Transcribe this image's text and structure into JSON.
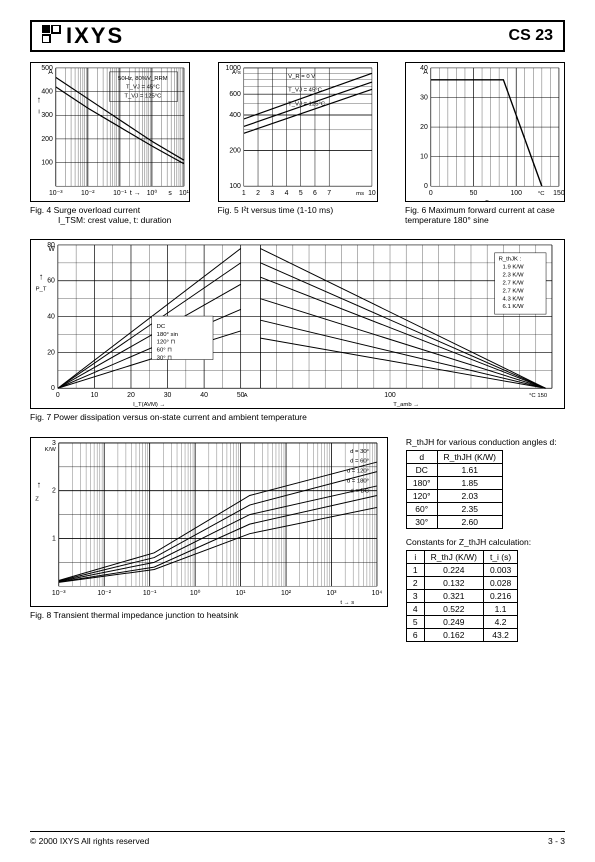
{
  "header": {
    "logo_text": "IXYS",
    "part_number": "CS 23"
  },
  "fig4": {
    "type": "line-log-x",
    "title": "Fig. 4  Surge overload current",
    "subtitle": "I_TSM: crest value, t: duration",
    "ylabel_top": "A",
    "ylabel": "I_TSM",
    "xlabel": "t",
    "xunit": "s",
    "annotations": [
      "50Hz, 80%V_RRM",
      "T_VJ = 45°C",
      "T_VJ = 125°C"
    ],
    "ylim": [
      0,
      500
    ],
    "ytick_step": 100,
    "xticks": [
      "10⁻³",
      "10⁻²",
      "10⁻¹",
      "10⁰",
      "10¹"
    ],
    "series": [
      {
        "label": "45C",
        "points": [
          [
            0,
            460
          ],
          [
            0.25,
            370
          ],
          [
            0.5,
            280
          ],
          [
            0.75,
            190
          ],
          [
            1,
            110
          ]
        ]
      },
      {
        "label": "125C",
        "points": [
          [
            0,
            420
          ],
          [
            0.25,
            330
          ],
          [
            0.5,
            250
          ],
          [
            0.75,
            170
          ],
          [
            1,
            95
          ]
        ]
      }
    ],
    "grid_color": "#000000",
    "background": "#ffffff"
  },
  "fig5": {
    "type": "line-log-y",
    "title": "Fig. 5  I²t versus time (1-10 ms)",
    "ylabel_top": "A²s",
    "ylabel": "I²t",
    "xlabel": "t",
    "xunit": "ms",
    "annotations": [
      "V_R = 0 V",
      "T_VJ = 45°C",
      "T_VJ = 125°C"
    ],
    "ylim": [
      100,
      1000
    ],
    "yticks": [
      100,
      200,
      400,
      600,
      1000
    ],
    "xticks": [
      1,
      2,
      3,
      4,
      5,
      6,
      7,
      10
    ],
    "series": [
      {
        "points": [
          [
            1,
            320
          ],
          [
            10,
            760
          ]
        ]
      },
      {
        "points": [
          [
            1,
            280
          ],
          [
            10,
            660
          ]
        ]
      },
      {
        "points": [
          [
            1,
            370
          ],
          [
            10,
            900
          ]
        ]
      }
    ],
    "grid_color": "#000000"
  },
  "fig6": {
    "type": "line",
    "title": "Fig. 6  Maximum forward current at case temperature 180° sine",
    "ylabel_top": "A",
    "ylabel": "I_T(AV)M",
    "xlabel": "T_case",
    "xunit": "°C",
    "ylim": [
      0,
      40
    ],
    "ytick_step": 10,
    "xlim": [
      0,
      150
    ],
    "xtick_step": 50,
    "series": [
      {
        "points": [
          [
            0,
            36
          ],
          [
            85,
            36
          ],
          [
            130,
            0
          ]
        ]
      }
    ],
    "grid_color": "#000000"
  },
  "fig7": {
    "type": "multi-line",
    "title": "Fig. 7  Power dissipation versus on-state current and ambient temperature",
    "ylabel_top": "W",
    "ylabel": "P_T",
    "left_xlabel": "I_T(AVM)",
    "right_xlabel": "T_amb",
    "ylim": [
      0,
      80
    ],
    "ytick_step": 20,
    "left_xticks": [
      0,
      10,
      20,
      30,
      40,
      50
    ],
    "left_xunit": "A",
    "right_xticks": [
      100,
      150
    ],
    "right_xunit": "°C",
    "left_legend": [
      "DC",
      "180° sin",
      "120° ⊓",
      "60° ⊓",
      "30° ⊓"
    ],
    "right_legend_title": "R_thJK :",
    "right_legend": [
      "1.9 K/W",
      "2.3 K/W",
      "2.7 K/W",
      "2.7 K/W",
      "4.3 K/W",
      "6.1 K/W"
    ],
    "left_series": [
      [
        [
          0,
          0
        ],
        [
          50,
          78
        ]
      ],
      [
        [
          0,
          0
        ],
        [
          50,
          70
        ]
      ],
      [
        [
          0,
          0
        ],
        [
          50,
          58
        ]
      ],
      [
        [
          0,
          0
        ],
        [
          50,
          44
        ]
      ],
      [
        [
          0,
          0
        ],
        [
          50,
          32
        ]
      ]
    ],
    "right_series": [
      [
        [
          60,
          78
        ],
        [
          148,
          0
        ]
      ],
      [
        [
          60,
          70
        ],
        [
          148,
          0
        ]
      ],
      [
        [
          60,
          62
        ],
        [
          148,
          0
        ]
      ],
      [
        [
          60,
          50
        ],
        [
          148,
          0
        ]
      ],
      [
        [
          60,
          38
        ],
        [
          148,
          0
        ]
      ],
      [
        [
          60,
          28
        ],
        [
          148,
          0
        ]
      ]
    ],
    "grid_color": "#000000"
  },
  "fig8": {
    "type": "log-log",
    "title": "Fig. 8  Transient thermal impedance junction to heatsink",
    "ylabel_top": "K/W",
    "ylabel": "Z_thJH",
    "xlabel": "t",
    "xunit": "s",
    "yticks": [
      0.1,
      1,
      2,
      3
    ],
    "xticks": [
      "10⁻³",
      "10⁻²",
      "10⁻¹",
      "10⁰",
      "10¹",
      "10²",
      "10³",
      "10⁴"
    ],
    "legend": [
      "d = 30°",
      "d = 60°",
      "d = 120°",
      "d = 180°",
      "d = DC"
    ],
    "series": [
      [
        [
          0,
          0.12
        ],
        [
          0.3,
          0.7
        ],
        [
          0.6,
          1.9
        ],
        [
          1,
          2.6
        ]
      ],
      [
        [
          0,
          0.11
        ],
        [
          0.3,
          0.6
        ],
        [
          0.6,
          1.7
        ],
        [
          1,
          2.4
        ]
      ],
      [
        [
          0,
          0.1
        ],
        [
          0.3,
          0.5
        ],
        [
          0.6,
          1.5
        ],
        [
          1,
          2.1
        ]
      ],
      [
        [
          0,
          0.09
        ],
        [
          0.3,
          0.4
        ],
        [
          0.6,
          1.3
        ],
        [
          1,
          1.9
        ]
      ],
      [
        [
          0,
          0.08
        ],
        [
          0.3,
          0.35
        ],
        [
          0.6,
          1.1
        ],
        [
          1,
          1.65
        ]
      ]
    ],
    "grid_color": "#000000"
  },
  "table_rth": {
    "title": "R_thJH for various conduction angles d:",
    "columns": [
      "d",
      "R_thJH (K/W)"
    ],
    "rows": [
      [
        "DC",
        "1.61"
      ],
      [
        "180°",
        "1.85"
      ],
      [
        "120°",
        "2.03"
      ],
      [
        "60°",
        "2.35"
      ],
      [
        "30°",
        "2.60"
      ]
    ]
  },
  "table_z": {
    "title": "Constants for Z_thJH calculation:",
    "columns": [
      "i",
      "R_thJ (K/W)",
      "t_i (s)"
    ],
    "rows": [
      [
        "1",
        "0.224",
        "0.003"
      ],
      [
        "2",
        "0.132",
        "0.028"
      ],
      [
        "3",
        "0.321",
        "0.216"
      ],
      [
        "4",
        "0.522",
        "1.1"
      ],
      [
        "5",
        "0.249",
        "4.2"
      ],
      [
        "6",
        "0.162",
        "43.2"
      ]
    ]
  },
  "footer": {
    "copyright": "© 2000 IXYS All rights reserved",
    "page": "3 - 3"
  }
}
